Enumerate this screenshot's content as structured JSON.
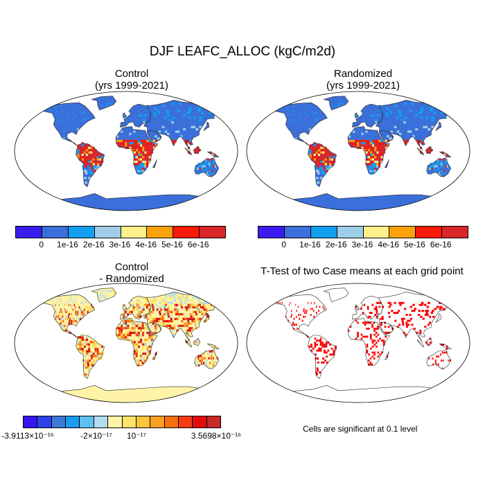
{
  "title": "DJF LEAFC_ALLOC (kgC/m2d)",
  "panels": {
    "control": {
      "title1": "Control",
      "title2": "(yrs 1999-2021)"
    },
    "randomized": {
      "title1": "Randomized",
      "title2": "(yrs 1999-2021)"
    },
    "difference": {
      "title1": "Control",
      "title2": "- Randomized"
    },
    "ttest": {
      "title": "T-Test of two Case means at each grid point",
      "note": "Cells are significant at 0.1 level"
    }
  },
  "colorbar_main": {
    "colors": [
      "#3a1cf0",
      "#3b6fd9",
      "#139ff0",
      "#9fcde8",
      "#fdf08a",
      "#fba20a",
      "#fb1a0a",
      "#d8262a"
    ],
    "labels": [
      "0",
      "1e-16",
      "2e-16",
      "3e-16",
      "4e-16",
      "5e-16",
      "6e-16"
    ]
  },
  "colorbar_diff": {
    "colors": [
      "#3516f0",
      "#2d43e8",
      "#3c78d8",
      "#1a9cf0",
      "#5fc0f0",
      "#b3dcef",
      "#fff3a8",
      "#fde368",
      "#fcc43a",
      "#f9a020",
      "#f5700f",
      "#f43c14",
      "#e00c0c",
      "#c62828"
    ],
    "labels": [
      "-3.9113×10⁻¹⁶",
      "-2×10⁻¹⁷",
      "10⁻¹⁷",
      "3.5698×10⁻¹⁶"
    ]
  },
  "colors": {
    "ocean": "#ffffff",
    "land_low": "#3b6fd9",
    "antarctica_diff": "#fff3a8",
    "significant": "#ff0000"
  }
}
